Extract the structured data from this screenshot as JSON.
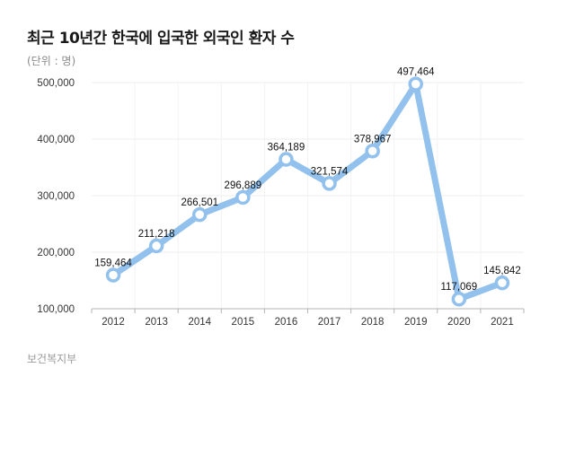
{
  "title": "최근 10년간 한국에 입국한 외국인 환자 수",
  "unit_label": "(단위 : 명)",
  "source": "보건복지부",
  "chart_data": {
    "type": "line",
    "categories": [
      "2012",
      "2013",
      "2014",
      "2015",
      "2016",
      "2017",
      "2018",
      "2019",
      "2020",
      "2021"
    ],
    "series": [
      {
        "values": [
          159464,
          211218,
          266501,
          296889,
          364189,
          321574,
          378967,
          497464,
          117069,
          145842
        ]
      }
    ],
    "data_labels": [
      "159,464",
      "211,218",
      "266,501",
      "296,889",
      "364,189",
      "321,574",
      "378,967",
      "497,464",
      "117,069",
      "145,842"
    ],
    "yticks": [
      "100,000",
      "200,000",
      "300,000",
      "400,000",
      "500,000"
    ],
    "ytick_values": [
      100000,
      200000,
      300000,
      400000,
      500000
    ],
    "ylim": [
      100000,
      500000
    ],
    "line_color": "#91c1ec",
    "grid": true
  }
}
